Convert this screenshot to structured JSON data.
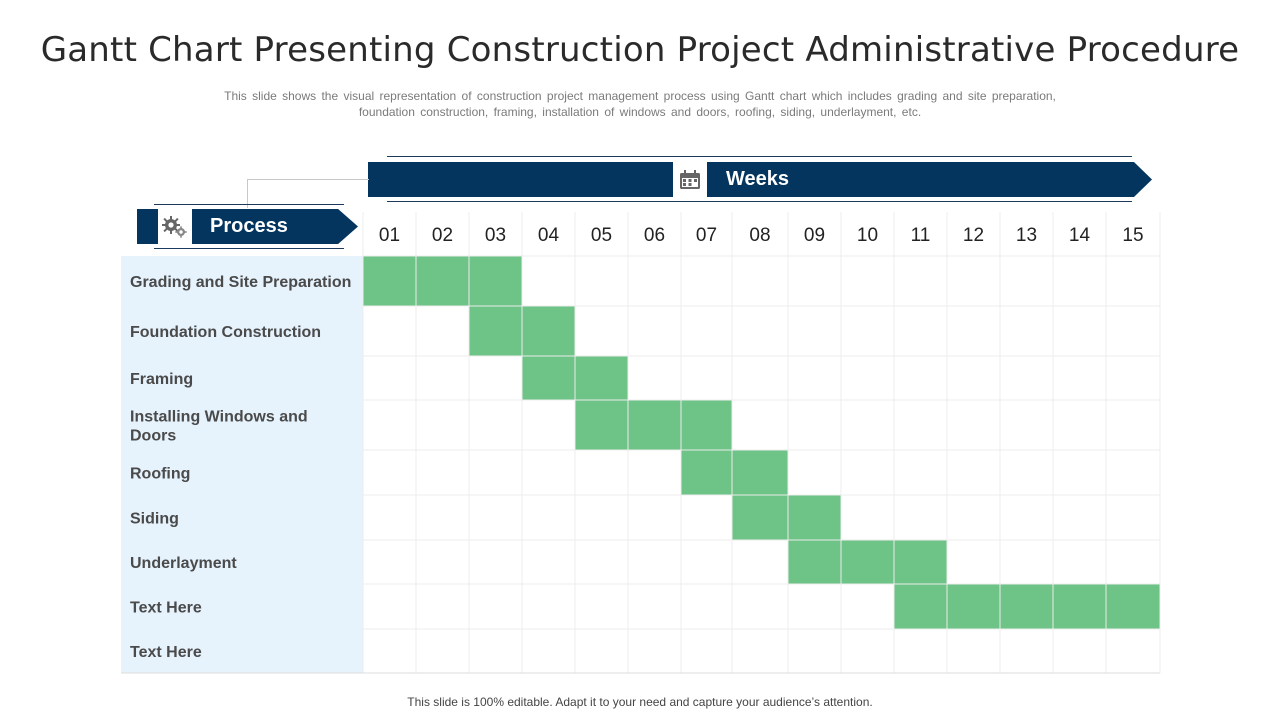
{
  "title": "Gantt Chart Presenting Construction Project Administrative Procedure",
  "subtitle_line1": "This slide shows the visual representation of construction project management process using Gantt chart which includes grading and site preparation,",
  "subtitle_line2": "foundation construction, framing, installation of windows and doors, roofing, siding, underlayment, etc.",
  "weeks_label": "Weeks",
  "process_label": "Process",
  "footer": "This slide is 100% editable. Adapt it to your need and capture your audience’s attention.",
  "icons": {
    "weeks": "calendar-icon",
    "process": "gears-icon"
  },
  "colors": {
    "banner": "#04355f",
    "bar": "#6dc486",
    "label_bg": "#e6f3fd",
    "grid": "#ececec"
  },
  "chart_data": {
    "type": "gantt",
    "weeks": [
      "01",
      "02",
      "03",
      "04",
      "05",
      "06",
      "07",
      "08",
      "09",
      "10",
      "11",
      "12",
      "13",
      "14",
      "15"
    ],
    "tasks": [
      {
        "name": "Grading and Site Preparation",
        "lines": [
          "Grading and Site Preparation"
        ],
        "start": 1,
        "end": 3
      },
      {
        "name": " Foundation Construction",
        "lines": [
          " Foundation Construction"
        ],
        "start": 3,
        "end": 4
      },
      {
        "name": "Framing",
        "lines": [
          "Framing"
        ],
        "start": 4,
        "end": 5
      },
      {
        "name": "Installing Windows and Doors",
        "lines": [
          "Installing Windows and",
          "Doors"
        ],
        "start": 5,
        "end": 7
      },
      {
        "name": "Roofing",
        "lines": [
          "Roofing"
        ],
        "start": 7,
        "end": 8
      },
      {
        "name": "Siding",
        "lines": [
          "Siding"
        ],
        "start": 8,
        "end": 9
      },
      {
        "name": "Underlayment",
        "lines": [
          "Underlayment"
        ],
        "start": 9,
        "end": 11
      },
      {
        "name": "Text Here",
        "lines": [
          "Text Here"
        ],
        "start": 11,
        "end": 15
      },
      {
        "name": "Text Here",
        "lines": [
          "Text Here"
        ],
        "start": null,
        "end": null
      }
    ]
  }
}
